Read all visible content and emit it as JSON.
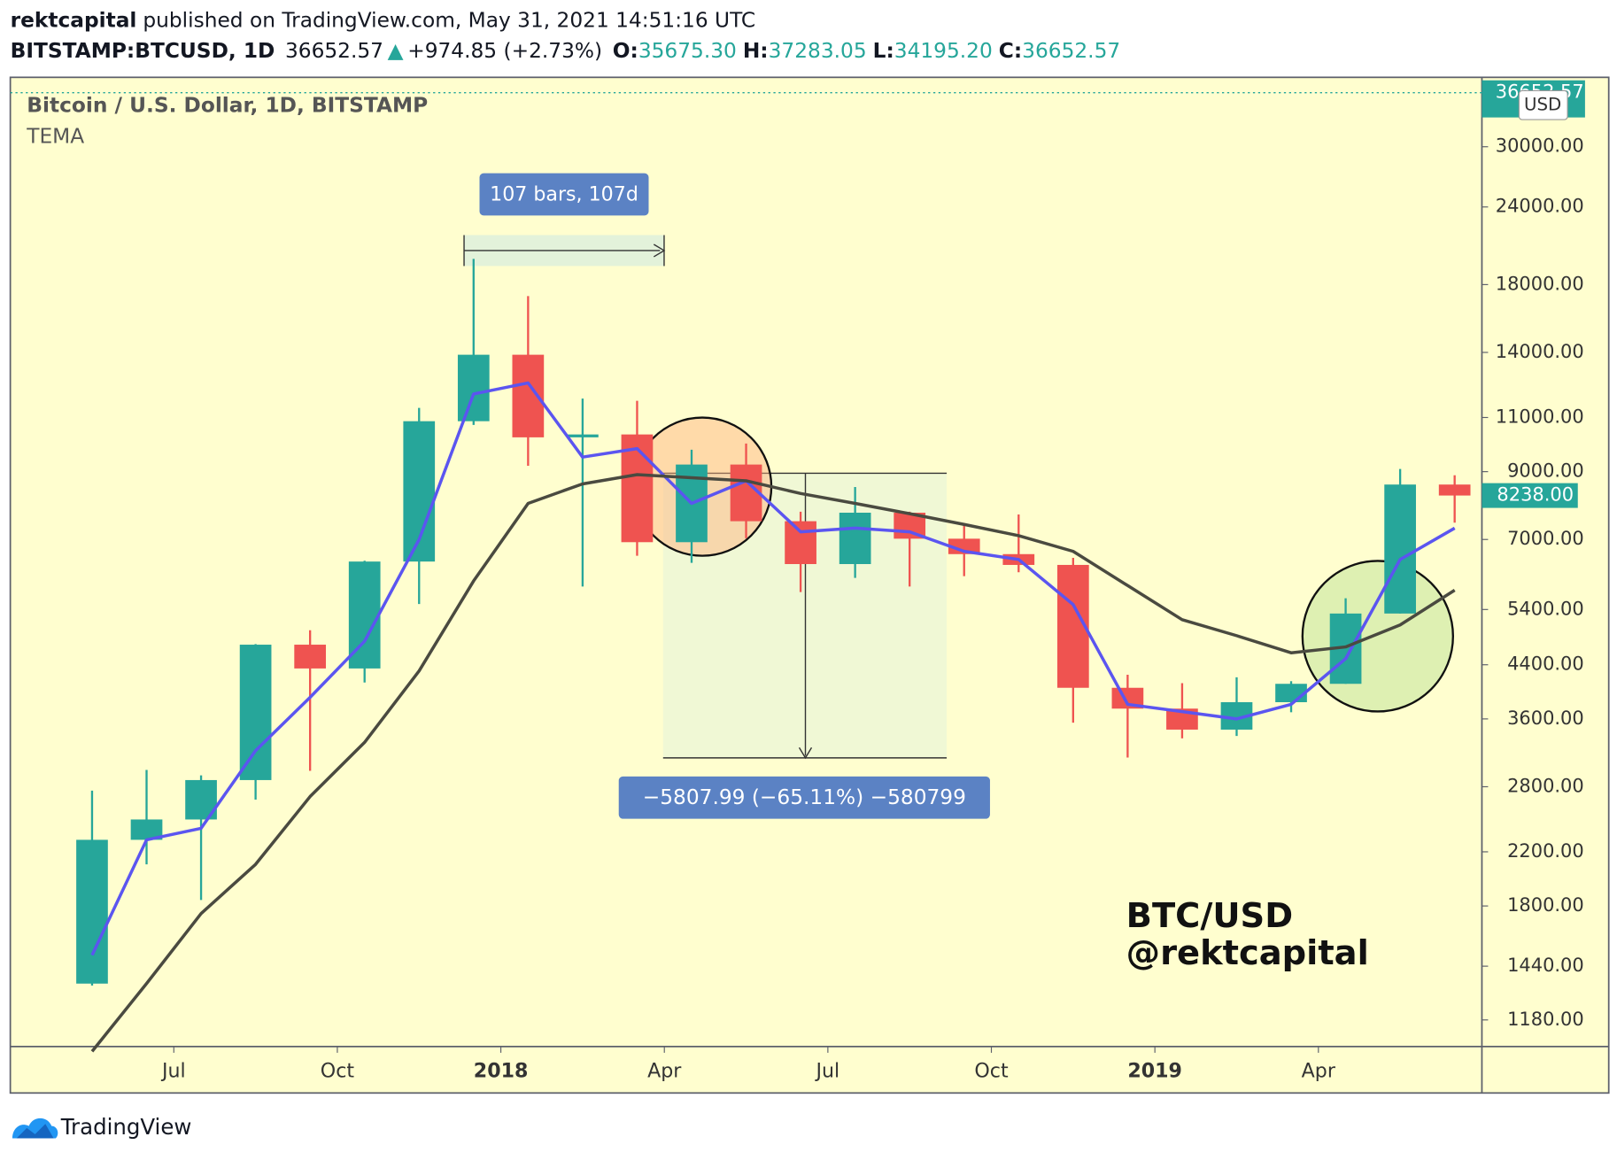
{
  "header": {
    "author": "rektcapital",
    "published": "published on TradingView.com, May 31, 2021 14:51:16 UTC",
    "symbol": "BITSTAMP:BTCUSD, 1D",
    "price": "36652.57",
    "arrow": "▲",
    "change": "+974.85 (+2.73%)",
    "ohlc": [
      {
        "label": "O:",
        "value": "35675.30"
      },
      {
        "label": "H:",
        "value": "37283.05"
      },
      {
        "label": "L:",
        "value": "34195.20"
      },
      {
        "label": "C:",
        "value": "36652.57"
      }
    ]
  },
  "chart_data": {
    "type": "candlestick",
    "title": "Bitcoin / U.S. Dollar, 1D, BITSTAMP",
    "indicator": "TEMA",
    "log_scale": true,
    "grid": false,
    "up_color": "#26a69a",
    "down_color": "#ef5350",
    "x": [
      "2017-05",
      "2017-06",
      "2017-07",
      "2017-08",
      "2017-09",
      "2017-10",
      "2017-11",
      "2017-12",
      "2018-01",
      "2018-02",
      "2018-03",
      "2018-04",
      "2018-05",
      "2018-06",
      "2018-07",
      "2018-08",
      "2018-09",
      "2018-10",
      "2018-11",
      "2018-12",
      "2019-01",
      "2019-02",
      "2019-03",
      "2019-04",
      "2019-05",
      "2019-06"
    ],
    "open": [
      1350,
      2300,
      2480,
      2870,
      4740,
      4340,
      6450,
      10850,
      13880,
      10220,
      10330,
      6930,
      9240,
      7490,
      6390,
      7730,
      7020,
      6630,
      6370,
      4040,
      3740,
      3460,
      3830,
      4100,
      5320,
      8580
    ],
    "high": [
      2760,
      2980,
      2920,
      4750,
      5000,
      6470,
      11400,
      19800,
      17250,
      11800,
      11700,
      9760,
      9990,
      7760,
      8500,
      7760,
      7410,
      7680,
      6540,
      4240,
      4110,
      4200,
      4140,
      5630,
      9090,
      8880
    ],
    "low": [
      1340,
      2100,
      1840,
      2670,
      2970,
      4120,
      5510,
      10700,
      9200,
      5880,
      6590,
      6420,
      7030,
      5760,
      6070,
      5880,
      6110,
      6200,
      3550,
      3120,
      3350,
      3380,
      3690,
      4100,
      5320,
      7450
    ],
    "close": [
      2300,
      2480,
      2870,
      4740,
      4340,
      6450,
      10850,
      13880,
      10220,
      10330,
      6930,
      9240,
      7490,
      6390,
      7730,
      7020,
      6630,
      6370,
      4040,
      3740,
      3460,
      3830,
      4100,
      5320,
      8580,
      8238
    ],
    "overlays": [
      {
        "color": "#5b55f0",
        "values": [
          1500,
          2300,
          2400,
          3200,
          3900,
          4800,
          7000,
          12000,
          12500,
          9500,
          9800,
          8000,
          8700,
          7200,
          7300,
          7200,
          6700,
          6500,
          5500,
          3800,
          3700,
          3600,
          3800,
          4500,
          6500,
          7300
        ]
      },
      {
        "color": "#4a4a40",
        "values": [
          1050,
          1350,
          1750,
          2100,
          2700,
          3300,
          4300,
          6000,
          8000,
          8600,
          8900,
          8800,
          8700,
          8300,
          8000,
          7700,
          7400,
          7100,
          6700,
          5900,
          5200,
          4900,
          4600,
          4700,
          5100,
          5800
        ]
      }
    ],
    "xlim": [
      "2017-04",
      "2019-07"
    ],
    "xticks": [
      {
        "value": "2017-07",
        "label": "Jul"
      },
      {
        "value": "2017-10",
        "label": "Oct"
      },
      {
        "value": "2018-01",
        "label": "2018"
      },
      {
        "value": "2018-04",
        "label": "Apr"
      },
      {
        "value": "2018-07",
        "label": "Jul"
      },
      {
        "value": "2018-10",
        "label": "Oct"
      },
      {
        "value": "2019-01",
        "label": "2019"
      },
      {
        "value": "2019-04",
        "label": "Apr"
      }
    ],
    "ylim": [
      1069,
      38800
    ],
    "yticks": [
      {
        "value": 1180,
        "label": "1180.00"
      },
      {
        "value": 1440,
        "label": "1440.00"
      },
      {
        "value": 1800,
        "label": "1800.00"
      },
      {
        "value": 2200,
        "label": "2200.00"
      },
      {
        "value": 2800,
        "label": "2800.00"
      },
      {
        "value": 3600,
        "label": "3600.00"
      },
      {
        "value": 4400,
        "label": "4400.00"
      },
      {
        "value": 5400,
        "label": "5400.00"
      },
      {
        "value": 7000,
        "label": "7000.00"
      },
      {
        "value": 9000,
        "label": "9000.00"
      },
      {
        "value": 11000,
        "label": "11000.00"
      },
      {
        "value": 14000,
        "label": "14000.00"
      },
      {
        "value": 18000,
        "label": "18000.00"
      },
      {
        "value": 24000,
        "label": "24000.00"
      },
      {
        "value": 30000,
        "label": "30000.00"
      }
    ],
    "last_price": {
      "value": 36652.57,
      "label": "36652.57"
    },
    "current_price": {
      "value": 8238,
      "label": "8238.00"
    },
    "currency": "USD",
    "annotations": {
      "range_bars": "107 bars, 107d",
      "drop": "−5807.99 (−65.11%) −580799",
      "watermark": [
        "BTC/USD",
        "@rektcapital"
      ]
    }
  },
  "footer": {
    "brand": "TradingView"
  }
}
